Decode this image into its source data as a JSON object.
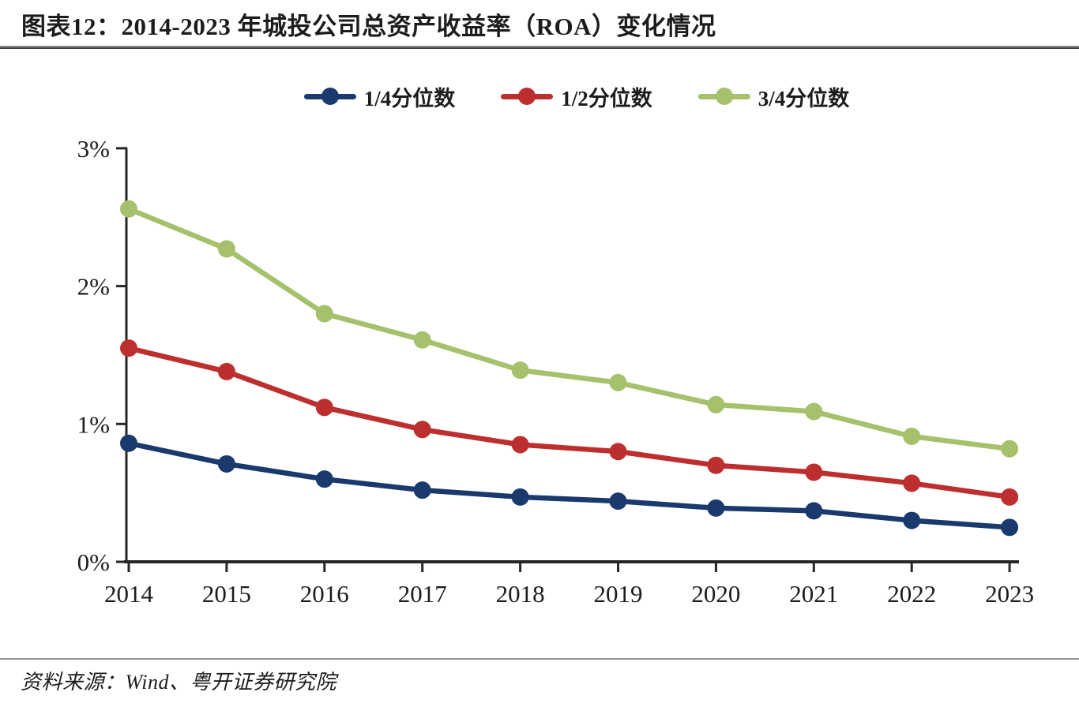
{
  "header": {
    "title": "图表12：2014-2023 年城投公司总资产收益率（ROA）变化情况"
  },
  "chart_data": {
    "type": "line",
    "title": "2014-2023 年城投公司总资产收益率（ROA）变化情况",
    "x": [
      2014,
      2015,
      2016,
      2017,
      2018,
      2019,
      2020,
      2021,
      2022,
      2023
    ],
    "series": [
      {
        "name": "1/4分位数",
        "color": "#1a3a6d",
        "values": [
          0.86,
          0.71,
          0.6,
          0.52,
          0.47,
          0.44,
          0.39,
          0.37,
          0.3,
          0.25
        ]
      },
      {
        "name": "1/2分位数",
        "color": "#bd2f2f",
        "values": [
          1.55,
          1.38,
          1.12,
          0.96,
          0.85,
          0.8,
          0.7,
          0.65,
          0.57,
          0.47
        ]
      },
      {
        "name": "3/4分位数",
        "color": "#a6c16c",
        "values": [
          2.56,
          2.27,
          1.8,
          1.61,
          1.39,
          1.3,
          1.14,
          1.09,
          0.91,
          0.82
        ]
      }
    ],
    "xlabel": "",
    "ylabel": "",
    "ylim": [
      0,
      3
    ],
    "yticks": {
      "values": [
        0,
        1,
        2,
        3
      ],
      "labels": [
        "0%",
        "1%",
        "2%",
        "3%"
      ]
    },
    "grid": false,
    "legend_position": "top",
    "axis_color": "#262626"
  },
  "footer": {
    "source": "资料来源：Wind、粤开证券研究院"
  }
}
